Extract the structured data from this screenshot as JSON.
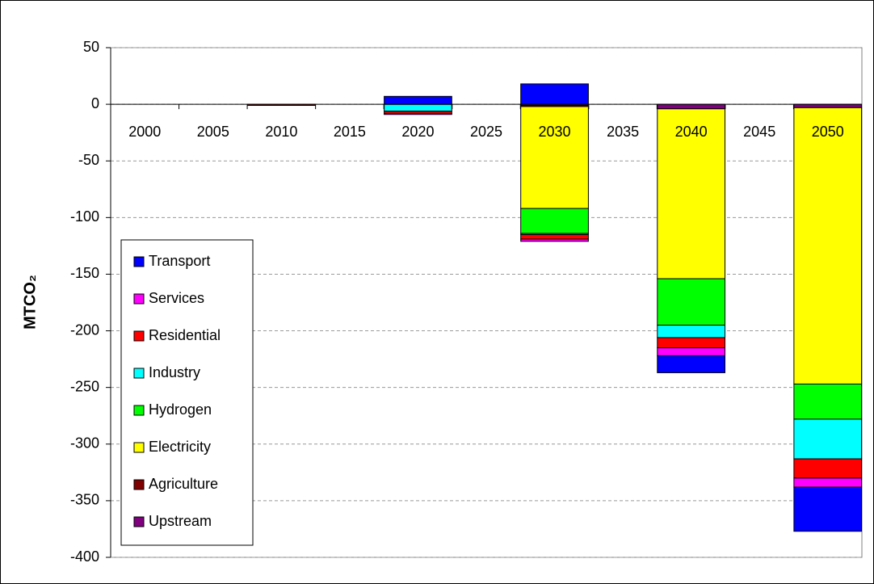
{
  "chart_data": {
    "type": "stacked_bar",
    "ylabel": "MTCO₂",
    "categories": [
      "2000",
      "2005",
      "2010",
      "2015",
      "2020",
      "2025",
      "2030",
      "2035",
      "2040",
      "2045",
      "2050"
    ],
    "series": [
      {
        "name": "Transport",
        "color": "#0000ff",
        "values": [
          null,
          null,
          null,
          null,
          7,
          null,
          18,
          null,
          -15,
          null,
          -39
        ]
      },
      {
        "name": "Services",
        "color": "#ff00ff",
        "values": [
          null,
          null,
          null,
          null,
          -1,
          null,
          -2,
          null,
          -7,
          null,
          -8
        ]
      },
      {
        "name": "Residential",
        "color": "#ff0000",
        "values": [
          null,
          null,
          null,
          null,
          -2,
          null,
          -4,
          null,
          -9,
          null,
          -17
        ]
      },
      {
        "name": "Industry",
        "color": "#00ffff",
        "values": [
          null,
          null,
          null,
          null,
          -6,
          null,
          -1,
          null,
          -11,
          null,
          -35
        ]
      },
      {
        "name": "Hydrogen",
        "color": "#00ff00",
        "values": [
          null,
          null,
          null,
          null,
          0,
          null,
          -22,
          null,
          -41,
          null,
          -31
        ]
      },
      {
        "name": "Electricity",
        "color": "#ffff00",
        "values": [
          null,
          null,
          null,
          null,
          0,
          null,
          -90,
          null,
          -150,
          null,
          -244
        ]
      },
      {
        "name": "Agriculture",
        "color": "#800000",
        "values": [
          null,
          null,
          -1,
          null,
          0,
          null,
          -1,
          null,
          0,
          null,
          0
        ]
      },
      {
        "name": "Upstream",
        "color": "#800080",
        "values": [
          null,
          null,
          null,
          null,
          0,
          null,
          -1,
          null,
          -4,
          null,
          -3
        ]
      }
    ],
    "ylim": [
      -400,
      50
    ],
    "yticks": [
      50,
      0,
      -50,
      -100,
      -150,
      -200,
      -250,
      -300,
      -350,
      -400
    ],
    "grid": true
  }
}
